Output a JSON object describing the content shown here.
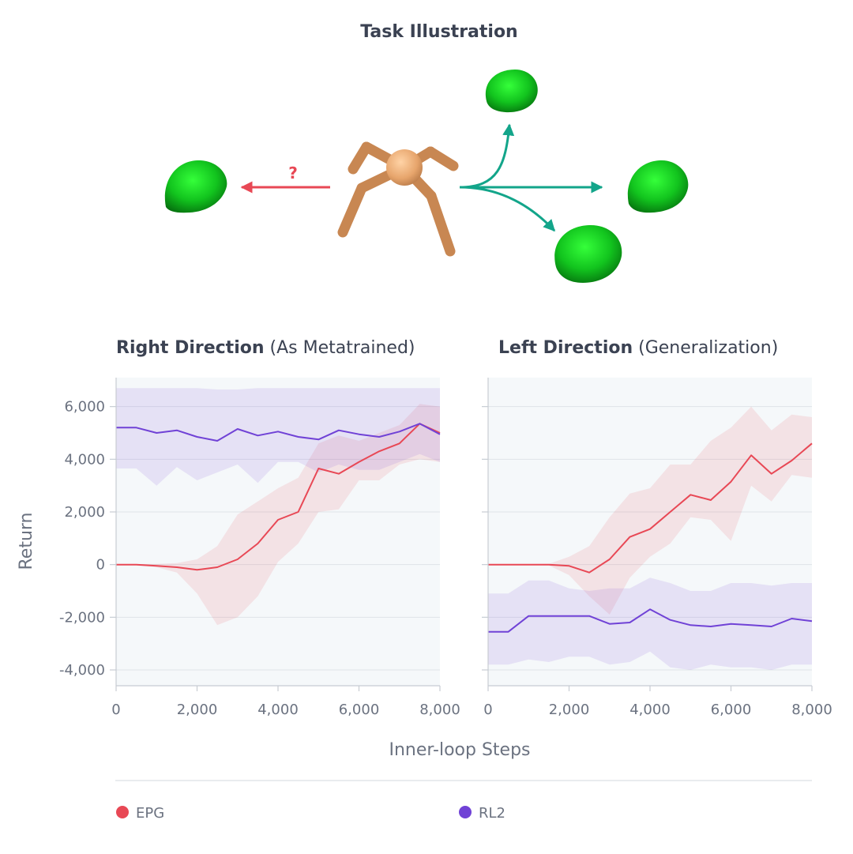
{
  "illustration": {
    "title": "Task Illustration",
    "question_mark": "?",
    "colors": {
      "arrow_left": "#e84855",
      "arrow_right": "#13a58a",
      "goal": "#12c12a",
      "agent": "#e7a56c"
    }
  },
  "chart_data": [
    {
      "type": "line",
      "title_bold": "Right Direction",
      "title_rest": " (As Metatrained)",
      "xlabel": "Inner-loop Steps",
      "ylabel": "Return",
      "xlim": [
        0,
        8000
      ],
      "ylim": [
        -4600,
        7100
      ],
      "xticks": [
        0,
        2000,
        4000,
        6000,
        8000
      ],
      "xtick_labels": [
        "0",
        "2,000",
        "4,000",
        "6,000",
        "8,000"
      ],
      "yticks": [
        -4000,
        -2000,
        0,
        2000,
        4000,
        6000
      ],
      "ytick_labels": [
        "-4,000",
        "-2,000",
        "0",
        "2,000",
        "4,000",
        "6,000"
      ],
      "grid": true,
      "series": [
        {
          "name": "EPG",
          "color": "#e84855",
          "x": [
            0,
            500,
            1000,
            1500,
            2000,
            2500,
            3000,
            3500,
            4000,
            4500,
            5000,
            5500,
            6000,
            6500,
            7000,
            7500,
            8000
          ],
          "values": [
            0,
            0,
            -50,
            -100,
            -200,
            -100,
            200,
            800,
            1700,
            2000,
            3650,
            3450,
            3900,
            4300,
            4600,
            5350,
            5000
          ],
          "lower": [
            0,
            -20,
            -100,
            -300,
            -1100,
            -2300,
            -2000,
            -1200,
            100,
            800,
            2000,
            2100,
            3200,
            3200,
            3800,
            4000,
            3900
          ],
          "upper": [
            0,
            20,
            30,
            60,
            200,
            700,
            1900,
            2400,
            2900,
            3300,
            4600,
            4900,
            4700,
            5000,
            5300,
            6100,
            6000
          ]
        },
        {
          "name": "RL2",
          "color": "#7042d6",
          "x": [
            0,
            500,
            1000,
            1500,
            2000,
            2500,
            3000,
            3500,
            4000,
            4500,
            5000,
            5500,
            6000,
            6500,
            7000,
            7500,
            8000
          ],
          "values": [
            5200,
            5200,
            5000,
            5100,
            4850,
            4700,
            5150,
            4900,
            5050,
            4850,
            4750,
            5100,
            4950,
            4850,
            5050,
            5350,
            4950
          ],
          "lower": [
            3650,
            3650,
            3000,
            3700,
            3200,
            3500,
            3800,
            3100,
            3900,
            3900,
            3500,
            3800,
            3600,
            3600,
            3900,
            4200,
            3900
          ],
          "upper": [
            6700,
            6700,
            6700,
            6700,
            6700,
            6650,
            6650,
            6700,
            6700,
            6700,
            6700,
            6700,
            6700,
            6700,
            6700,
            6700,
            6700
          ]
        }
      ]
    },
    {
      "type": "line",
      "title_bold": "Left Direction",
      "title_rest": " (Generalization)",
      "xlabel": "Inner-loop Steps",
      "ylabel": "Return",
      "xlim": [
        0,
        8000
      ],
      "ylim": [
        -4600,
        7100
      ],
      "xticks": [
        0,
        2000,
        4000,
        6000,
        8000
      ],
      "xtick_labels": [
        "0",
        "2,000",
        "4,000",
        "6,000",
        "8,000"
      ],
      "yticks": [
        -4000,
        -2000,
        0,
        2000,
        4000,
        6000
      ],
      "ytick_labels": [
        "-4,000",
        "-2,000",
        "0",
        "2,000",
        "4,000",
        "6,000"
      ],
      "grid": true,
      "series": [
        {
          "name": "EPG",
          "color": "#e84855",
          "x": [
            0,
            500,
            1000,
            1500,
            2000,
            2500,
            3000,
            3500,
            4000,
            4500,
            5000,
            5500,
            6000,
            6500,
            7000,
            7500,
            8000
          ],
          "values": [
            0,
            0,
            0,
            0,
            -50,
            -300,
            200,
            1050,
            1350,
            2000,
            2650,
            2450,
            3150,
            4150,
            3450,
            3950,
            4600
          ],
          "lower": [
            0,
            0,
            -20,
            -30,
            -400,
            -1200,
            -1900,
            -500,
            300,
            800,
            1800,
            1700,
            900,
            3000,
            2400,
            3400,
            3300
          ],
          "upper": [
            0,
            0,
            20,
            30,
            300,
            700,
            1800,
            2700,
            2900,
            3800,
            3800,
            4700,
            5200,
            6000,
            5100,
            5700,
            5600
          ]
        },
        {
          "name": "RL2",
          "color": "#7042d6",
          "x": [
            0,
            500,
            1000,
            1500,
            2000,
            2500,
            3000,
            3500,
            4000,
            4500,
            5000,
            5500,
            6000,
            6500,
            7000,
            7500,
            8000
          ],
          "values": [
            -2550,
            -2550,
            -1950,
            -1950,
            -1950,
            -1950,
            -2250,
            -2200,
            -1700,
            -2100,
            -2300,
            -2350,
            -2250,
            -2300,
            -2350,
            -2050,
            -2150
          ],
          "lower": [
            -3800,
            -3800,
            -3600,
            -3700,
            -3500,
            -3500,
            -3800,
            -3700,
            -3300,
            -3900,
            -4000,
            -3800,
            -3900,
            -3900,
            -4000,
            -3800,
            -3800
          ],
          "upper": [
            -1100,
            -1100,
            -600,
            -600,
            -900,
            -1000,
            -900,
            -900,
            -500,
            -700,
            -1000,
            -1000,
            -700,
            -700,
            -800,
            -700,
            -700
          ]
        }
      ]
    }
  ],
  "legend": [
    {
      "name": "EPG",
      "color": "#e84855"
    },
    {
      "name": "RL2",
      "color": "#7042d6"
    }
  ]
}
